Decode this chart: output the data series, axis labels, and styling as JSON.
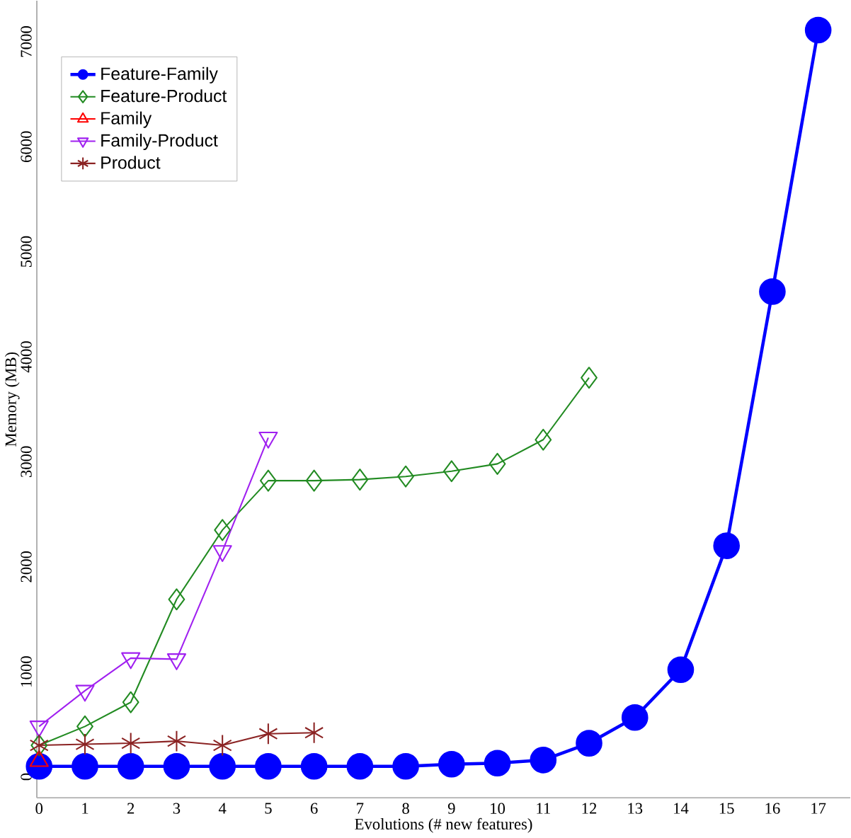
{
  "chart_data": {
    "type": "line",
    "xlabel": "Evolutions (# new features)",
    "ylabel": "Memory (MB)",
    "xlim": [
      -0.05,
      17.7
    ],
    "ylim": [
      -200,
      7390
    ],
    "xticks": [
      0,
      1,
      2,
      3,
      4,
      5,
      6,
      7,
      8,
      9,
      10,
      11,
      12,
      13,
      14,
      15,
      16,
      17
    ],
    "yticks": [
      0,
      1000,
      2000,
      3000,
      4000,
      5000,
      6000,
      7000
    ],
    "legend": "top left",
    "grid": false,
    "series": [
      {
        "name": "Feature-Family",
        "color": "#0000ff",
        "marker": "circle",
        "x": [
          0,
          1,
          2,
          3,
          4,
          5,
          6,
          7,
          8,
          9,
          10,
          11,
          12,
          13,
          14,
          15,
          16,
          17
        ],
        "values": [
          100,
          100,
          100,
          100,
          100,
          100,
          100,
          100,
          100,
          120,
          130,
          160,
          320,
          565,
          1020,
          2200,
          4620,
          7110
        ]
      },
      {
        "name": "Feature-Product",
        "color": "#228b22",
        "marker": "diamond",
        "x": [
          0,
          1,
          2,
          3,
          4,
          5,
          6,
          7,
          8,
          9,
          10,
          11,
          12
        ],
        "values": [
          300,
          480,
          710,
          1690,
          2350,
          2820,
          2820,
          2830,
          2860,
          2910,
          2980,
          3210,
          3800
        ]
      },
      {
        "name": "Family",
        "color": "#ff0000",
        "marker": "triangle",
        "x": [
          0
        ],
        "values": [
          150
        ]
      },
      {
        "name": "Family-Product",
        "color": "#a020f0",
        "marker": "triangle-down",
        "x": [
          0,
          1,
          2,
          3,
          4,
          5
        ],
        "values": [
          480,
          820,
          1130,
          1120,
          2150,
          3230
        ]
      },
      {
        "name": "Product",
        "color": "#8b2323",
        "marker": "cross",
        "x": [
          0,
          1,
          2,
          3,
          4,
          5,
          6
        ],
        "values": [
          300,
          310,
          320,
          340,
          300,
          410,
          420
        ]
      }
    ]
  }
}
